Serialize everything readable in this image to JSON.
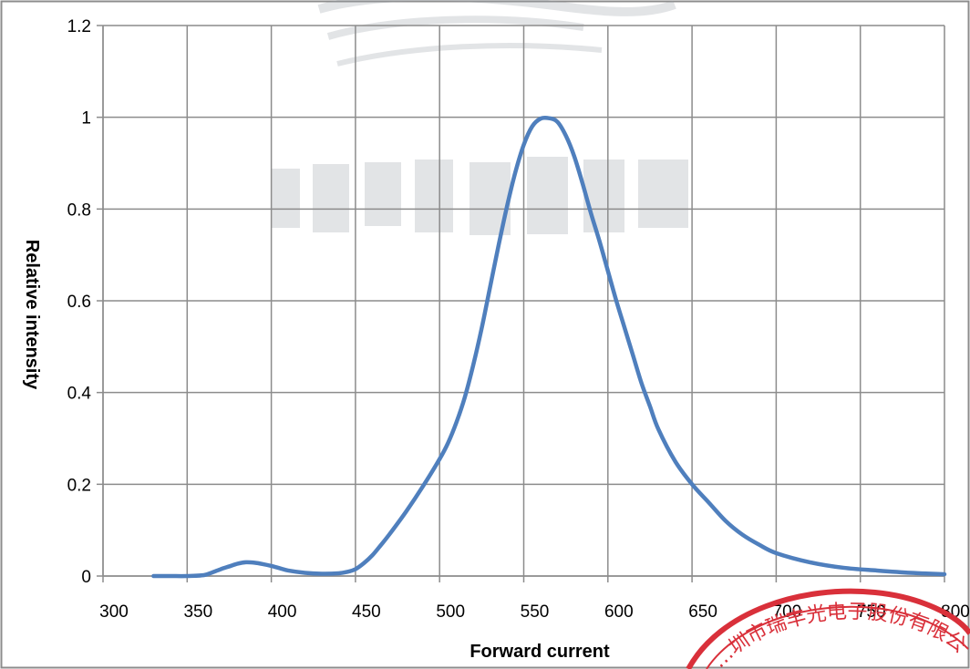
{
  "chart_data": {
    "type": "line",
    "title": "",
    "xlabel": "Forward current",
    "ylabel": "Relative intensity",
    "xlim": [
      300,
      800
    ],
    "ylim": [
      0,
      1.2
    ],
    "x_ticks": [
      300,
      350,
      400,
      450,
      500,
      550,
      600,
      650,
      700,
      750,
      800
    ],
    "y_ticks": [
      0,
      0.2,
      0.4,
      0.6,
      0.8,
      1,
      1.2
    ],
    "x_tick_labels": [
      "300",
      "350",
      "400",
      "450",
      "500",
      "550",
      "600",
      "650",
      "700",
      "750",
      "800"
    ],
    "y_tick_labels": [
      "0",
      "0.2",
      "0.4",
      "0.6",
      "0.8",
      "1",
      "1.2"
    ],
    "grid": true,
    "legend": "none",
    "series": [
      {
        "color": "#4f7fbd",
        "x": [
          330,
          340,
          350,
          360,
          365,
          370,
          375,
          380,
          385,
          390,
          395,
          400,
          405,
          410,
          420,
          430,
          440,
          445,
          450,
          455,
          460,
          465,
          470,
          480,
          490,
          500,
          505,
          510,
          515,
          520,
          525,
          530,
          535,
          540,
          545,
          550,
          555,
          560,
          565,
          570,
          575,
          580,
          585,
          590,
          595,
          600,
          605,
          610,
          615,
          620,
          625,
          630,
          640,
          650,
          660,
          670,
          680,
          690,
          700,
          720,
          740,
          760,
          780,
          800
        ],
        "y": [
          0.0,
          0.0,
          0.0,
          0.002,
          0.008,
          0.015,
          0.021,
          0.027,
          0.03,
          0.029,
          0.026,
          0.022,
          0.017,
          0.012,
          0.007,
          0.005,
          0.006,
          0.009,
          0.015,
          0.028,
          0.045,
          0.067,
          0.09,
          0.14,
          0.195,
          0.255,
          0.29,
          0.335,
          0.39,
          0.46,
          0.54,
          0.63,
          0.72,
          0.805,
          0.88,
          0.94,
          0.98,
          0.997,
          0.998,
          0.99,
          0.96,
          0.915,
          0.855,
          0.79,
          0.73,
          0.665,
          0.6,
          0.54,
          0.48,
          0.42,
          0.37,
          0.32,
          0.25,
          0.2,
          0.16,
          0.12,
          0.09,
          0.068,
          0.05,
          0.03,
          0.018,
          0.012,
          0.007,
          0.004
        ]
      }
    ]
  },
  "watermark": {
    "text": "",
    "color": "#9aa0a8"
  },
  "stamp": {
    "text": "…圳市瑞丰光电子股份有限公…",
    "color": "#d9303a"
  }
}
